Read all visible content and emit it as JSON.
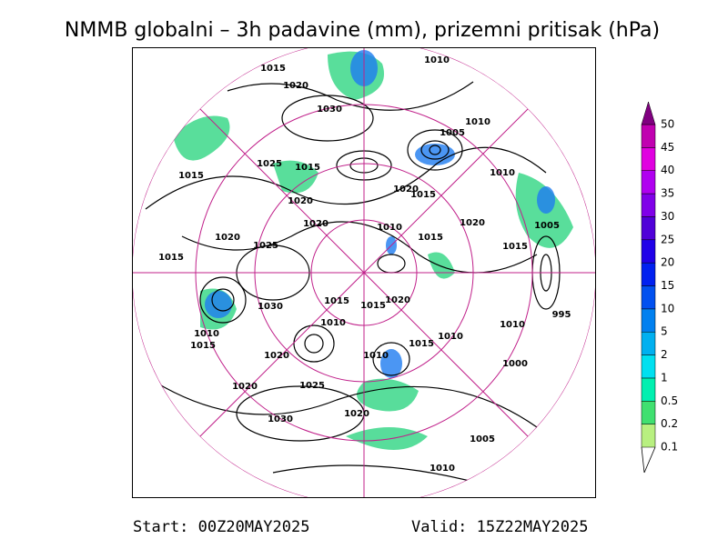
{
  "title": "NMMB globalni – 3h padavine (mm), prizemni pritisak (hPa)",
  "legend": {
    "levels": [
      {
        "value": 0.1,
        "label": "0.1"
      },
      {
        "value": 0.2,
        "label": "0.2"
      },
      {
        "value": 0.5,
        "label": "0.5"
      },
      1,
      2,
      5,
      10,
      15,
      20,
      25,
      30,
      35,
      40,
      45,
      50
    ],
    "colors": [
      "#b8f080",
      "#40e070",
      "#00f0b0",
      "#00e0f0",
      "#00b0f0",
      "#0080f0",
      "#0050f0",
      "#0020f0",
      "#2000e8",
      "#5000d8",
      "#8000e8",
      "#b000f0",
      "#e000e0",
      "#c000b0",
      "#800080"
    ]
  },
  "contour_labels": [
    "1015",
    "1010",
    "1020",
    "1030",
    "1010",
    "1005",
    "1015",
    "1025",
    "1015",
    "1010",
    "1020",
    "1015",
    "1020",
    "1020",
    "1010",
    "1020",
    "1005",
    "1020",
    "1025",
    "1015",
    "1015",
    "1015",
    "1030",
    "1015",
    "1015",
    "1020",
    "1010",
    "1010",
    "995",
    "1010",
    "1015",
    "1010",
    "1015",
    "1020",
    "1010",
    "1000",
    "1020",
    "1025",
    "1020",
    "1030",
    "1005",
    "1010"
  ],
  "footer": {
    "start": "Start: 00Z20MAY2025",
    "valid": "Valid: 15Z22MAY2025"
  }
}
